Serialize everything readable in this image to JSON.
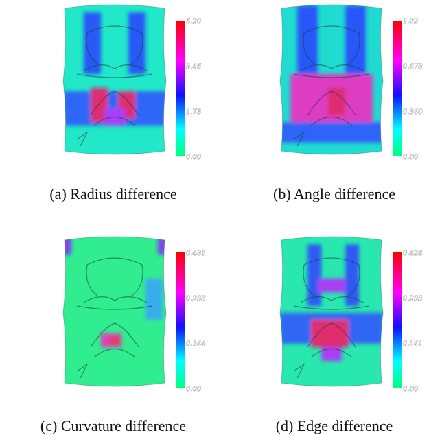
{
  "panels": [
    {
      "caption": "(a) Radius difference",
      "colorbar_labels": [
        "5.20",
        "3.46",
        "1.73",
        "0.00"
      ]
    },
    {
      "caption": "(b) Angle difference",
      "colorbar_labels": [
        "1.02",
        "0.678",
        "0.340",
        "0.00"
      ]
    },
    {
      "caption": "(c) Curvature difference",
      "colorbar_labels": [
        "0.431",
        "0.288",
        "0.144",
        "0.00"
      ]
    },
    {
      "caption": "(d) Edge difference",
      "colorbar_labels": [
        "0.424",
        "0.283",
        "0.141",
        "0.00"
      ]
    }
  ]
}
